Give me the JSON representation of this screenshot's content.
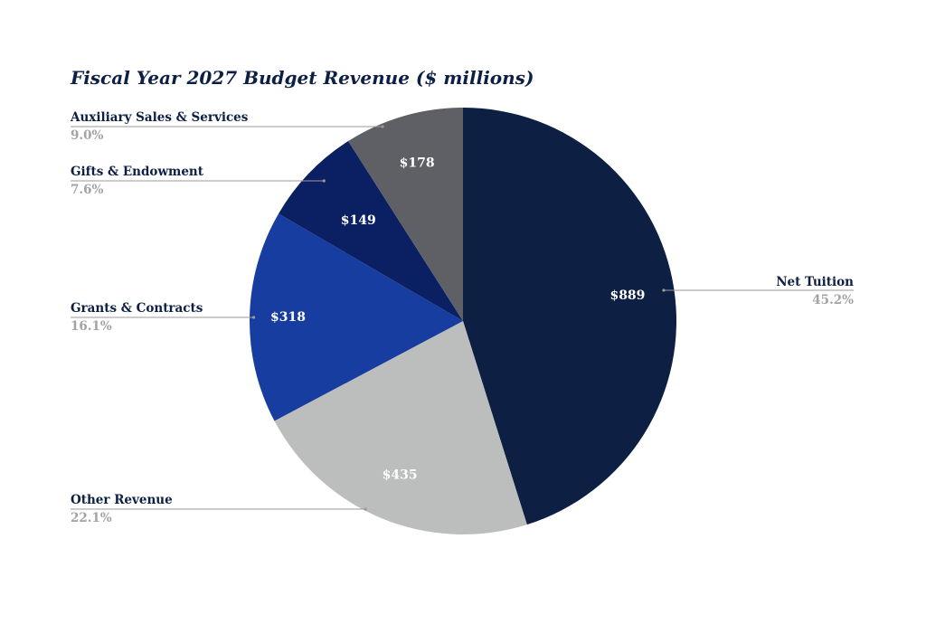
{
  "chart_data": {
    "type": "pie",
    "title": "Fiscal Year 2027 Budget Revenue ($ millions)",
    "slices": [
      {
        "name": "Net Tuition",
        "value": 889,
        "value_label": "$889",
        "percent_label": "45.2%",
        "color": "#0d1f42"
      },
      {
        "name": "Other Revenue",
        "value": 435,
        "value_label": "$435",
        "percent_label": "22.1%",
        "color": "#bcbebe"
      },
      {
        "name": "Grants & Contracts",
        "value": 318,
        "value_label": "$318",
        "percent_label": "16.1%",
        "color": "#173da0"
      },
      {
        "name": "Gifts & Endowment",
        "value": 149,
        "value_label": "$149",
        "percent_label": "7.6%",
        "color": "#0b1f63"
      },
      {
        "name": "Auxiliary Sales & Services",
        "value": 178,
        "value_label": "$178",
        "percent_label": "9.0%",
        "color": "#5f6066"
      }
    ]
  }
}
